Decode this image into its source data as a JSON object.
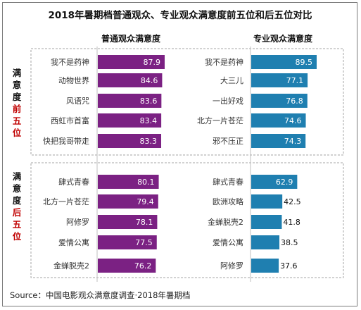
{
  "title": "2018年暑期档普通观众、专业观众满意度前五位和后五位对比",
  "source": "Source：中国电影观众满意度调查·2018年暑期档",
  "colors": {
    "general": "#7b2183",
    "pro": "#1f7fb0",
    "group_red": "#c00000"
  },
  "groups": [
    {
      "label_chars": [
        "满",
        "意",
        "度"
      ],
      "label_red_chars": [
        "前",
        "五",
        "位"
      ]
    },
    {
      "label_chars": [
        "满",
        "意",
        "度"
      ],
      "label_red_chars": [
        "后",
        "五",
        "位"
      ]
    }
  ],
  "chart_data": [
    {
      "type": "bar",
      "title": "普通观众满意度",
      "group": "满意度前五位",
      "categories": [
        "我不是药神",
        "动物世界",
        "风语咒",
        "西虹市首富",
        "快把我哥带走"
      ],
      "values": [
        87.9,
        84.6,
        83.6,
        83.4,
        83.3
      ]
    },
    {
      "type": "bar",
      "title": "专业观众满意度",
      "group": "满意度前五位",
      "categories": [
        "我不是药神",
        "大三儿",
        "一出好戏",
        "北方一片苍茫",
        "邪不压正"
      ],
      "values": [
        89.5,
        77.1,
        76.8,
        74.6,
        74.3
      ]
    },
    {
      "type": "bar",
      "title": "普通观众满意度",
      "group": "满意度后五位",
      "categories": [
        "肆式青春",
        "北方一片苍茫",
        "阿修罗",
        "爱情公寓",
        "金蝉脱壳2"
      ],
      "values": [
        80.1,
        79.4,
        78.1,
        77.5,
        76.2
      ]
    },
    {
      "type": "bar",
      "title": "专业观众满意度",
      "group": "满意度后五位",
      "categories": [
        "肆式青春",
        "欧洲攻略",
        "金蝉脱壳2",
        "爱情公寓",
        "阿修罗"
      ],
      "values": [
        62.9,
        42.5,
        41.8,
        38.5,
        37.6
      ]
    }
  ]
}
